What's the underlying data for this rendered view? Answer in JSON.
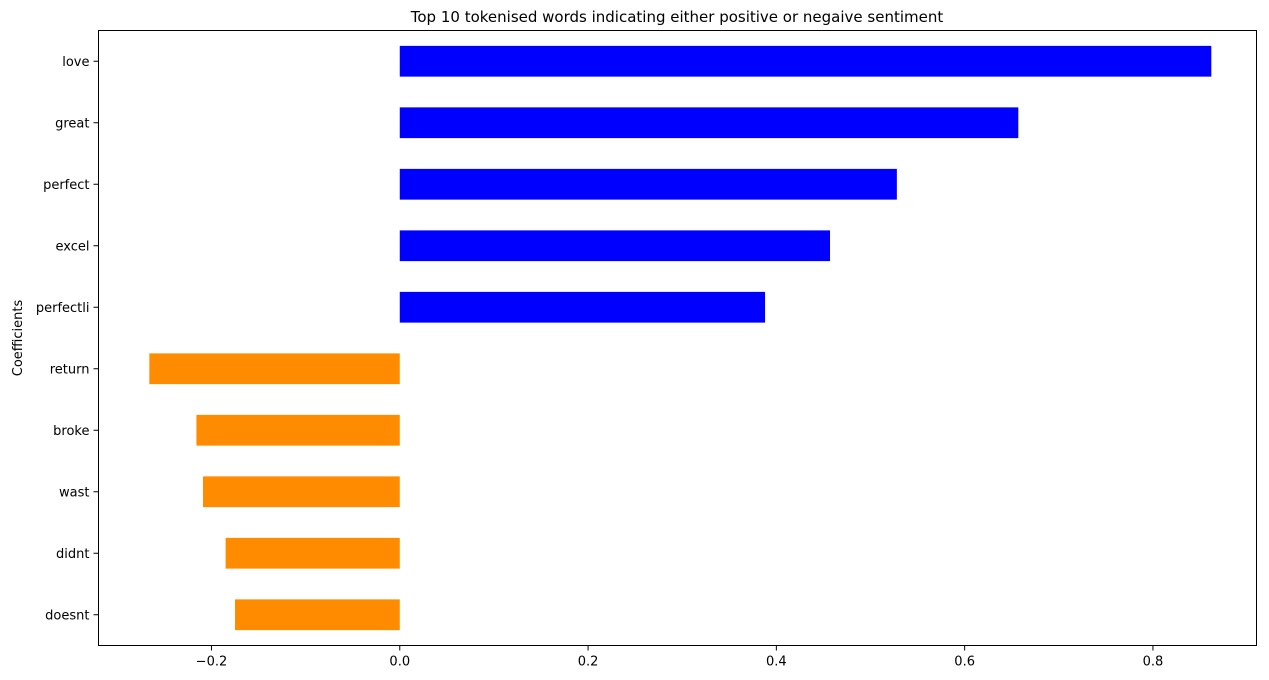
{
  "chart_data": {
    "type": "bar",
    "orientation": "horizontal",
    "title": "Top 10 tokenised words indicating either positive or negaive sentiment",
    "xlabel": "",
    "ylabel": "Coefficients",
    "categories": [
      "love",
      "great",
      "perfect",
      "excel",
      "perfectli",
      "return",
      "broke",
      "wast",
      "didnt",
      "doesnt"
    ],
    "values": [
      0.862,
      0.657,
      0.528,
      0.457,
      0.388,
      -0.266,
      -0.216,
      -0.209,
      -0.185,
      -0.175
    ],
    "bar_colors": [
      "#0000ff",
      "#0000ff",
      "#0000ff",
      "#0000ff",
      "#0000ff",
      "#ff8c00",
      "#ff8c00",
      "#ff8c00",
      "#ff8c00",
      "#ff8c00"
    ],
    "xlim": [
      -0.32,
      0.91
    ],
    "x_ticks": [
      -0.2,
      0.0,
      0.2,
      0.4,
      0.6,
      0.8
    ],
    "x_tick_labels": [
      "−0.2",
      "0.0",
      "0.2",
      "0.4",
      "0.6",
      "0.8"
    ],
    "grid": false,
    "legend": "none"
  }
}
